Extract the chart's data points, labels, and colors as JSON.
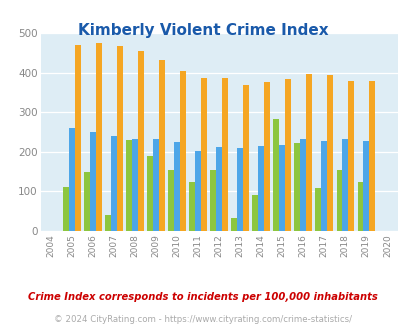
{
  "title": "Kimberly Violent Crime Index",
  "years": [
    2004,
    2005,
    2006,
    2007,
    2008,
    2009,
    2010,
    2011,
    2012,
    2013,
    2014,
    2015,
    2016,
    2017,
    2018,
    2019,
    2020
  ],
  "kimberly": [
    null,
    112,
    148,
    40,
    230,
    190,
    155,
    125,
    155,
    33,
    90,
    282,
    222,
    108,
    153,
    125,
    null
  ],
  "idaho": [
    null,
    260,
    250,
    240,
    233,
    232,
    225,
    203,
    211,
    210,
    215,
    218,
    232,
    228,
    232,
    228,
    null
  ],
  "national": [
    null,
    469,
    474,
    467,
    455,
    432,
    405,
    387,
    387,
    368,
    377,
    384,
    397,
    394,
    380,
    379,
    null
  ],
  "kimberly_color": "#8dc63f",
  "idaho_color": "#4da6e8",
  "national_color": "#f5a623",
  "plot_bg": "#deedf5",
  "fig_bg": "#ffffff",
  "ylabel_max": 500,
  "yticks": [
    0,
    100,
    200,
    300,
    400,
    500
  ],
  "footnote1": "Crime Index corresponds to incidents per 100,000 inhabitants",
  "footnote2": "© 2024 CityRating.com - https://www.cityrating.com/crime-statistics/",
  "title_color": "#1a5aaa",
  "footnote1_color": "#cc0000",
  "footnote2_color": "#aaaaaa",
  "bar_width": 0.28
}
